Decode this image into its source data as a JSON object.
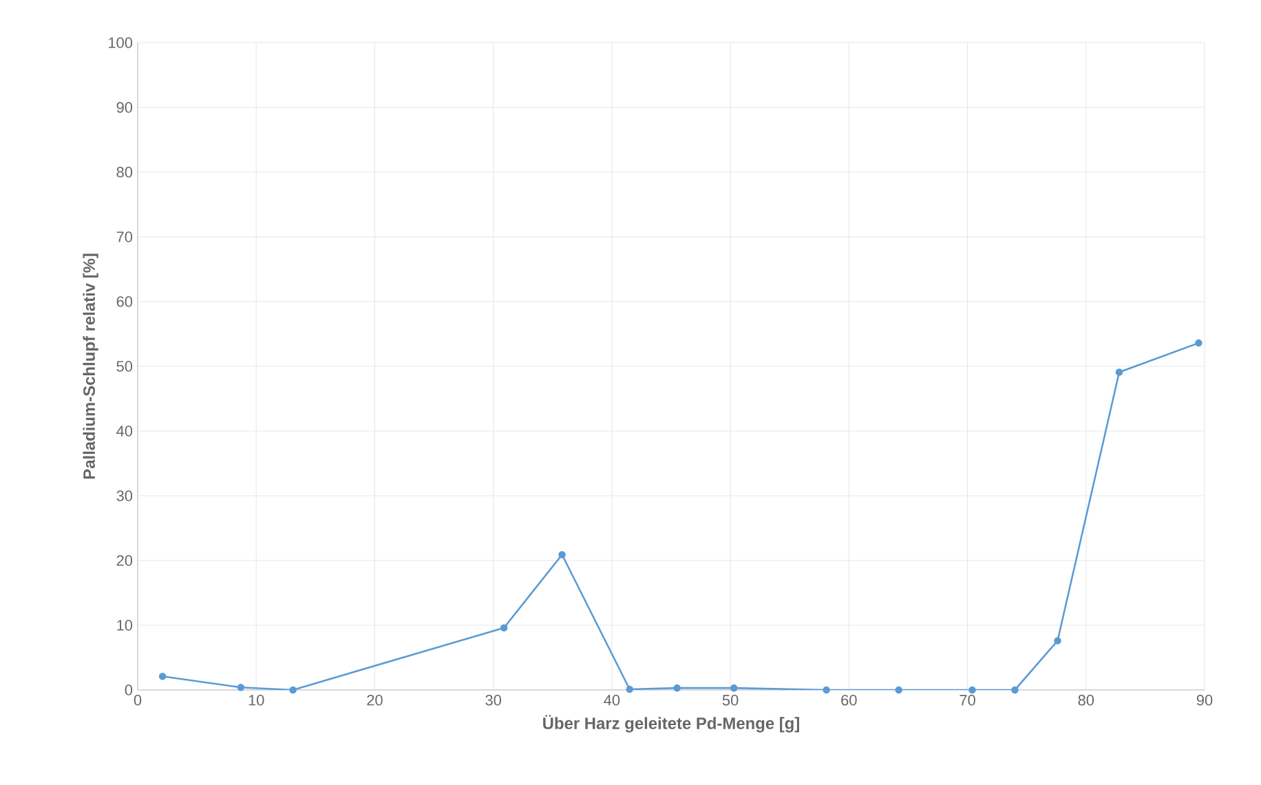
{
  "chart_data": {
    "type": "line",
    "xlabel": "Über Harz geleitete Pd-Menge [g]",
    "ylabel": "Palladium-Schlupf relativ [%]",
    "x": [
      2.1,
      8.7,
      13.1,
      30.9,
      35.8,
      41.5,
      45.5,
      50.3,
      58.1,
      64.2,
      70.4,
      74.0,
      77.6,
      82.8,
      89.5
    ],
    "series": [
      {
        "color": "#5b9bd5",
        "values": [
          2.1,
          0.4,
          0,
          9.6,
          20.9,
          0.1,
          0.3,
          0.3,
          0,
          0,
          0,
          0,
          7.6,
          49.1,
          53.6
        ]
      }
    ],
    "xlim": [
      0,
      90
    ],
    "ylim": [
      0,
      100
    ],
    "xticks": [
      0,
      10,
      20,
      30,
      40,
      50,
      60,
      70,
      80,
      90
    ],
    "yticks": [
      0,
      10,
      20,
      30,
      40,
      50,
      60,
      70,
      80,
      90,
      100
    ],
    "grid": true,
    "marker": "circle",
    "line_style": "solid"
  }
}
